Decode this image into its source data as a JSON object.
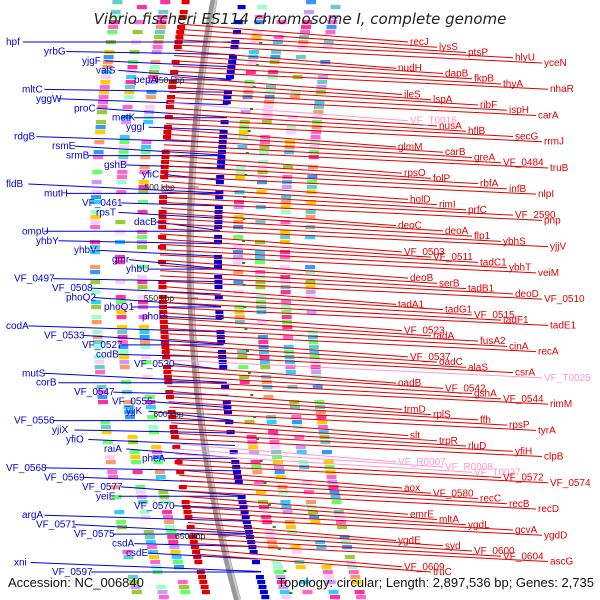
{
  "title": "Vibrio fischeri ES114 chromosome I, complete genome",
  "accession": "Accession: NC_006840",
  "summary": "Topology: circular; Length: 2,897,536 bp; Genes: 2,735",
  "colors": {
    "forward": "#e00000",
    "reverse": "#0000dd",
    "rna": "#ff99cc",
    "backbone": "#999999",
    "tick": "#228822"
  },
  "scale_marks": [
    "450 kbp",
    "500 kbp",
    "550 kbp",
    "600 kbp",
    "650 kbp"
  ],
  "left_labels": [
    "hpf",
    "yrbG",
    "yjgF",
    "valS",
    "pepA",
    "mltC",
    "yggW",
    "proC",
    "metK",
    "yggI",
    "rdgB",
    "rsmE",
    "srmB",
    "gshB",
    "yfiC",
    "fldB",
    "mutH",
    "VF_0461",
    "rpsT",
    "dacB",
    "ompU",
    "yhbY",
    "yhbV",
    "gmr",
    "yhbU",
    "VF_0497",
    "VF_0508",
    "phoQ2",
    "phoQ1",
    "phoP",
    "codA",
    "VF_0533",
    "VF_0527",
    "codB",
    "VF_0530",
    "mutS",
    "corB",
    "VF_0547",
    "VF_0555",
    "yjjK",
    "VF_0556",
    "yjiX",
    "yfiO",
    "raiA",
    "pheA",
    "VF_0568",
    "VF_0569",
    "VF_0577",
    "yeiE",
    "VF_0570",
    "argA",
    "VF_0571",
    "VF_0575",
    "csdA",
    "csdE",
    "xni",
    "VF_0597"
  ],
  "right_labels": [
    "recJ",
    "lysS",
    "ptsP",
    "hlyU",
    "yceN",
    "nudH",
    "dapB",
    "fkpB",
    "thyA",
    "nhaR",
    "ileS",
    "lspA",
    "ribF",
    "ispH",
    "carA",
    "VF_T0016",
    "nusA",
    "hflB",
    "secG",
    "rrmJ",
    "glmM",
    "carB",
    "greA",
    "VF_0484",
    "truB",
    "rpsO",
    "folP",
    "rbfA",
    "infB",
    "nlpI",
    "holD",
    "rimI",
    "prfC",
    "VF_2590",
    "pnp",
    "deoC",
    "deoA",
    "flp1",
    "ybhS",
    "yjjV",
    "VF_0503",
    "VF_0511",
    "tadC1",
    "ybhT",
    "veiM",
    "deoB",
    "serB",
    "tadB1",
    "deoD",
    "VF_0510",
    "tadA1",
    "tadG1",
    "VF_0515",
    "tadF1",
    "tadE1",
    "VF_0523",
    "radA",
    "fusA2",
    "cinA",
    "recA",
    "VF_0537",
    "oadC",
    "alaS",
    "csrA",
    "VF_T0025",
    "oadB",
    "VF_0542",
    "gshA",
    "VF_0544",
    "rimM",
    "trmD",
    "rplS",
    "ffh",
    "rpsP",
    "tyrA",
    "slt",
    "trpR",
    "rluD",
    "yfiH",
    "clpB",
    "VF_R0007",
    "VF_R0008",
    "VF_T0027",
    "VF_0572",
    "VF_0574",
    "aox",
    "VF_0580",
    "recC",
    "recB",
    "recD",
    "emrE",
    "mltA",
    "ygdL",
    "gcvA",
    "ygdD",
    "ygdE",
    "syd",
    "VF_0600",
    "VF_0604",
    "ascG",
    "VF_0609",
    "truC"
  ]
}
